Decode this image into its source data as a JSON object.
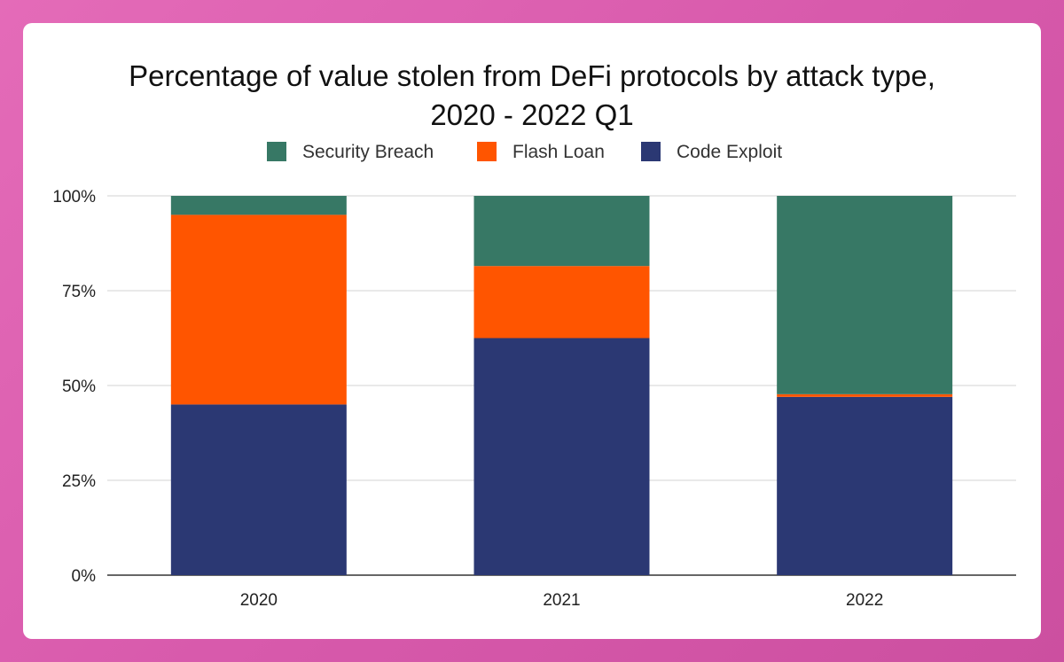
{
  "chart_data": {
    "type": "bar",
    "stacked": true,
    "title_lines": [
      "Percentage of value stolen from DeFi protocols by attack type,",
      "2020 - 2022 Q1"
    ],
    "categories": [
      "2020",
      "2021",
      "2022"
    ],
    "series": [
      {
        "name": "Code Exploit",
        "color": "#2b3873",
        "values": [
          45,
          62.5,
          47
        ]
      },
      {
        "name": "Flash Loan",
        "color": "#ff5500",
        "values": [
          50,
          19,
          0.7
        ]
      },
      {
        "name": "Security Breach",
        "color": "#377865",
        "values": [
          5,
          18.5,
          52.3
        ]
      }
    ],
    "legend_order": [
      "Security Breach",
      "Flash Loan",
      "Code Exploit"
    ],
    "y_ticks": [
      "0%",
      "25%",
      "50%",
      "75%",
      "100%"
    ],
    "ylim": [
      0,
      100
    ],
    "grid": true,
    "legend_position": "top"
  }
}
